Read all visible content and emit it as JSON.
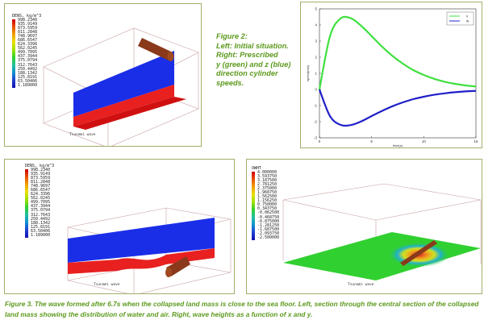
{
  "figure2": {
    "caption_lines": [
      "Figure  2:",
      "Left: Initial situation.",
      "Right: Prescribed",
      "y (green) and z (blue)",
      "direction cylinder",
      "speeds."
    ],
    "left_panel": {
      "legend_title": "DENS, kg/m^3",
      "legend_values": [
        "998.2340",
        "935.9149",
        "873.5959",
        "811.2848",
        "748.9697",
        "686.6547",
        "624.3396",
        "562.0245",
        "499.7095",
        "437.3944",
        "375.0794",
        "312.7643",
        "250.4492",
        "188.1342",
        "125.8191",
        "63.50406",
        "1.189000"
      ],
      "footer": "Tsunami wave"
    }
  },
  "chart_data": {
    "type": "line",
    "title": "",
    "xlabel": "time(s)",
    "ylabel": "speed(m/s)",
    "xlim": [
      0,
      15
    ],
    "ylim": [
      -3,
      5
    ],
    "xticks": [
      "0",
      "5",
      "10",
      "15"
    ],
    "yticks": [
      "-3",
      "-2",
      "-1",
      "0",
      "1",
      "2",
      "3",
      "4",
      "5"
    ],
    "legend_placement": "top-right",
    "x": [
      0,
      1,
      2,
      3,
      4,
      5,
      6,
      7,
      8,
      9,
      10,
      11,
      12,
      13,
      14,
      15
    ],
    "series": [
      {
        "name": "v",
        "color": "#40e040",
        "values": [
          0,
          3.28,
          4.39,
          4.42,
          3.95,
          3.31,
          2.66,
          2.08,
          1.6,
          1.2,
          0.9,
          0.66,
          0.48,
          0.35,
          0.25,
          0.18
        ]
      },
      {
        "name": "w",
        "color": "#2020c8",
        "values": [
          0,
          -1.64,
          -2.19,
          -2.21,
          -1.98,
          -1.65,
          -1.33,
          -1.04,
          -0.8,
          -0.6,
          -0.45,
          -0.33,
          -0.24,
          -0.17,
          -0.12,
          -0.09
        ]
      }
    ]
  },
  "figure3": {
    "left_panel": {
      "legend_title": "DENS, kg/m^3",
      "legend_values": [
        "998.2340",
        "935.9149",
        "873.5959",
        "811.2848",
        "748.9697",
        "686.6547",
        "624.3396",
        "562.0245",
        "499.7095",
        "437.3944",
        "375.0794",
        "312.7643",
        "250.4492",
        "188.1342",
        "125.8191",
        "63.50406",
        "1.189000"
      ],
      "footer": "Tsunami wave"
    },
    "right_panel": {
      "legend_title": "OWHT",
      "legend_values": [
        "4.000000",
        "3.593750",
        "3.187500",
        "2.781250",
        "2.375000",
        "1.968750",
        "1.562500",
        "1.156250",
        "0.750000",
        "0.343750",
        "-0.062500",
        "-0.468750",
        "-0.875000",
        "-1.281250",
        "-1.687500",
        "-2.093750",
        "-2.500000"
      ],
      "footer": "Tsunami wave"
    },
    "caption": "Figure 3. The wave formed after 6.7s when the collapsed land mass is close to the sea floor. Left, section through the central section of the collapsed land mass showing the distribution of water and air. Right, wave heights as a function of x and y."
  }
}
